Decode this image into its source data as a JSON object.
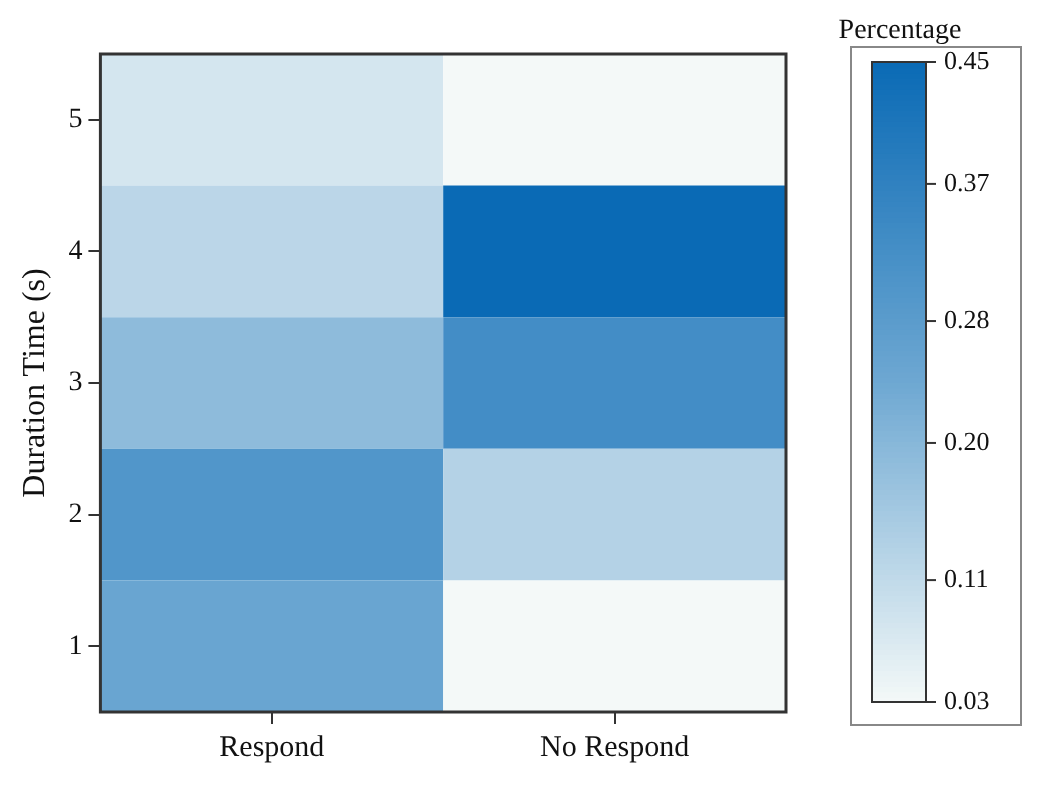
{
  "chart_data": {
    "type": "heatmap",
    "ylabel": "Duration Time (s)",
    "clabel": "Percentage",
    "categories": [
      "Respond",
      "No Respond"
    ],
    "y_categories": [
      "5",
      "4",
      "3",
      "2",
      "1"
    ],
    "cells": [
      [
        0.08,
        0.03
      ],
      [
        0.12,
        0.45
      ],
      [
        0.19,
        0.33
      ],
      [
        0.3,
        0.13
      ],
      [
        0.25,
        0.03
      ]
    ],
    "clim": [
      0.03,
      0.45
    ],
    "cticks": [
      0.03,
      0.11,
      {
        "value": 0.2,
        "label": "0.20"
      },
      0.28,
      0.37,
      0.45
    ]
  }
}
